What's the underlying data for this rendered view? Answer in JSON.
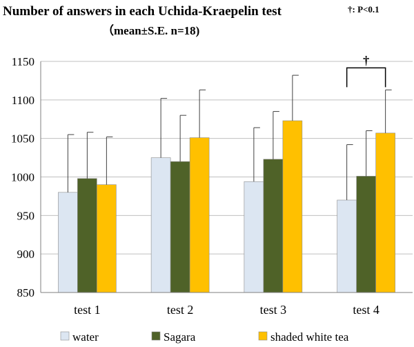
{
  "chart_data": {
    "type": "bar",
    "title": "Number of answers in each Uchida-Kraepelin test",
    "subtitle": "（mean±S.E. n=18)",
    "significance_note": "†: P<0.1",
    "significance_marker": "†",
    "significance_between": {
      "category": "test 4",
      "series": [
        "water",
        "shaded white tea"
      ]
    },
    "categories": [
      "test 1",
      "test 2",
      "test 3",
      "test 4"
    ],
    "series": [
      {
        "name": "water",
        "color": "#dce6f2",
        "values": [
          980,
          1025,
          994,
          970
        ],
        "errors": [
          75,
          77,
          70,
          72
        ]
      },
      {
        "name": "Sagara",
        "color": "#4f6228",
        "values": [
          998,
          1020,
          1023,
          1001
        ],
        "errors": [
          60,
          60,
          62,
          59
        ]
      },
      {
        "name": "shaded white tea",
        "color": "#ffc000",
        "values": [
          990,
          1051,
          1073,
          1057
        ],
        "errors": [
          62,
          62,
          59,
          56
        ]
      }
    ],
    "ylim": [
      850,
      1150
    ],
    "yticks": [
      "850",
      "900",
      "950",
      "1000",
      "1050",
      "1100",
      "1150"
    ],
    "xlabel": "",
    "ylabel": "",
    "grid": true,
    "legend_position": "bottom"
  }
}
